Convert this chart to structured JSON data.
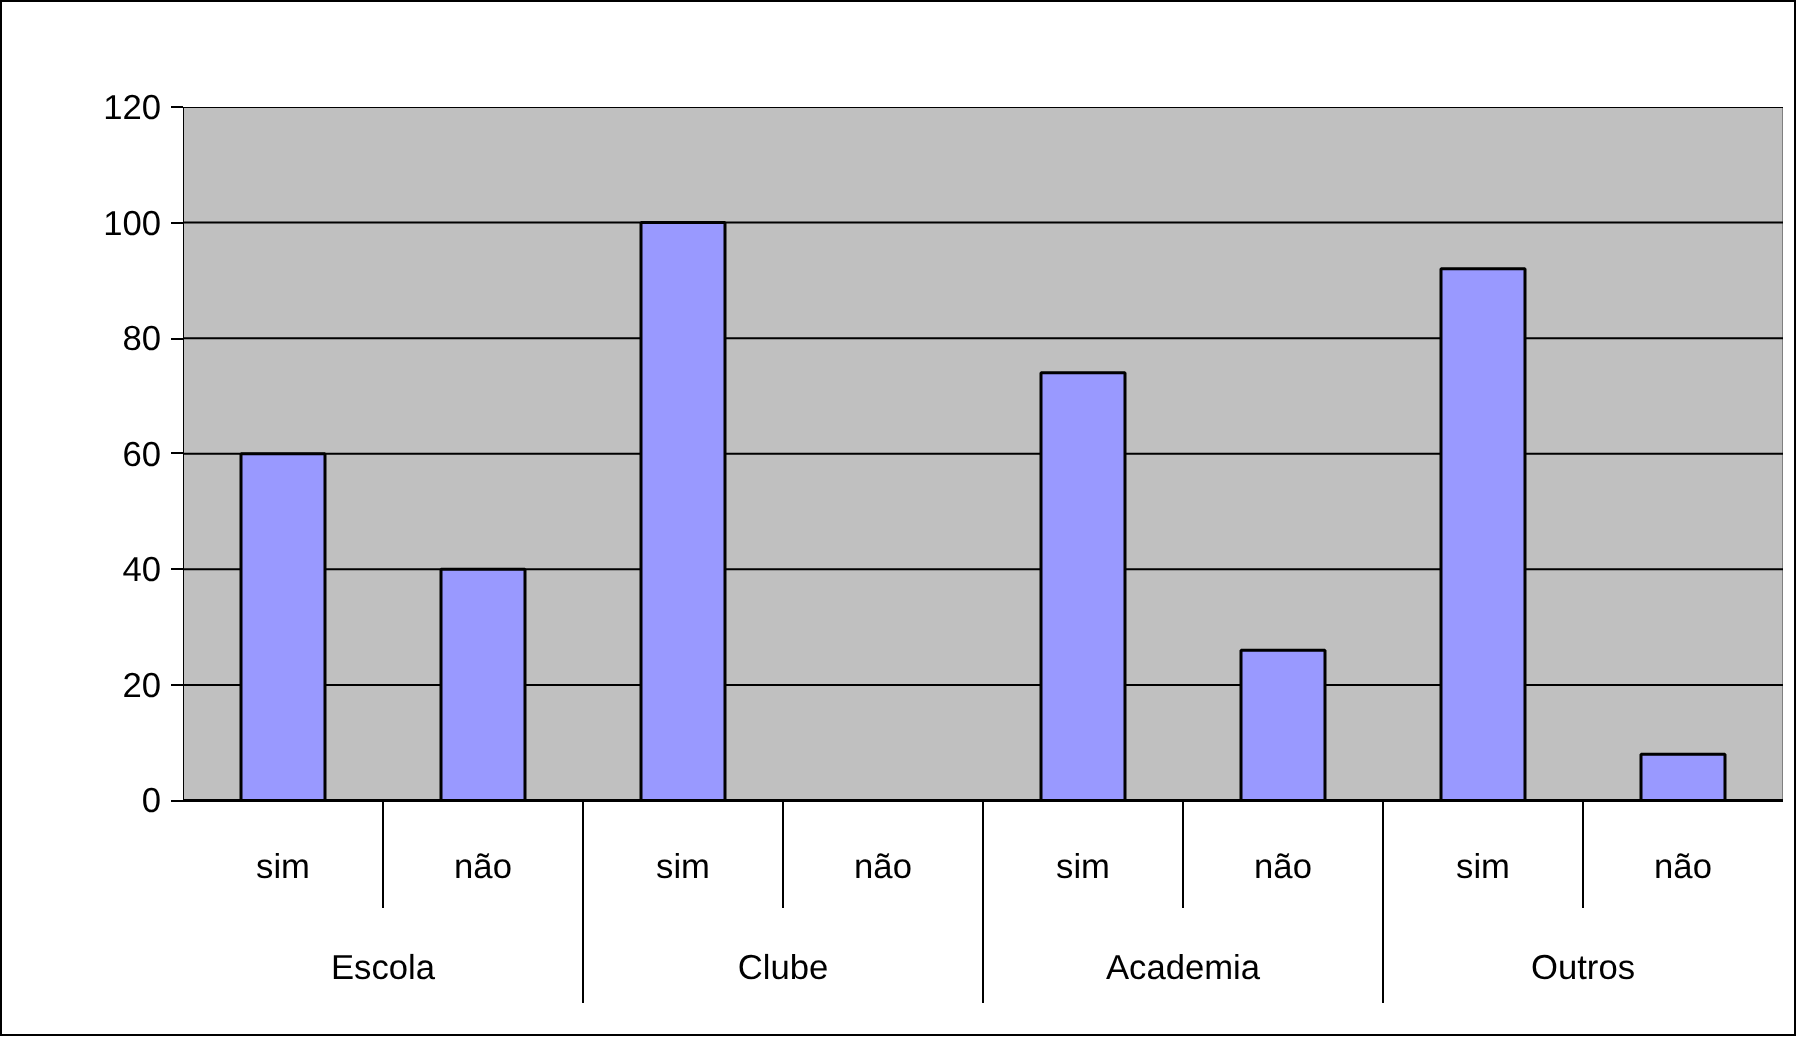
{
  "chart_data": {
    "type": "bar",
    "categories": [
      "sim",
      "não",
      "sim",
      "não",
      "sim",
      "não",
      "sim",
      "não"
    ],
    "values": [
      60,
      40,
      100,
      0,
      74,
      26,
      92,
      8
    ],
    "color": "#9999ff",
    "annotations": [
      "Escola",
      "Clube",
      "Academia",
      "Outros"
    ],
    "ylim": [
      0,
      120
    ],
    "yticks": [
      0,
      20,
      40,
      60,
      80,
      100,
      120
    ],
    "grid": "y"
  }
}
